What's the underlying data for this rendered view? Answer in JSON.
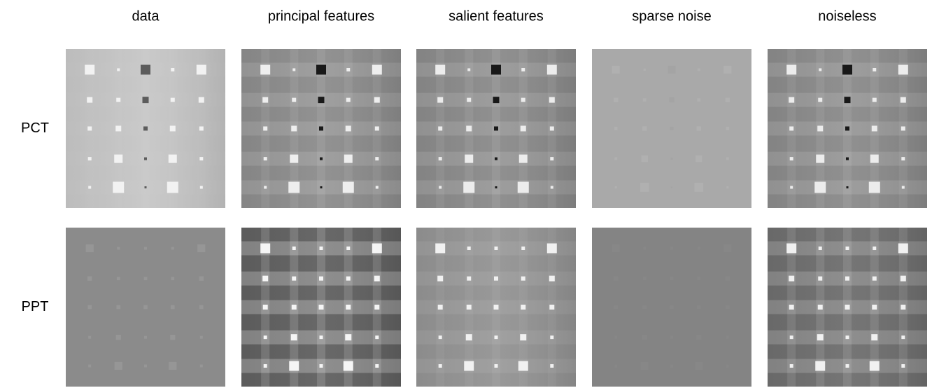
{
  "columns": [
    "data",
    "principal features",
    "salient features",
    "sparse noise",
    "noiseless"
  ],
  "rows": [
    "PCT",
    "PPT"
  ]
}
